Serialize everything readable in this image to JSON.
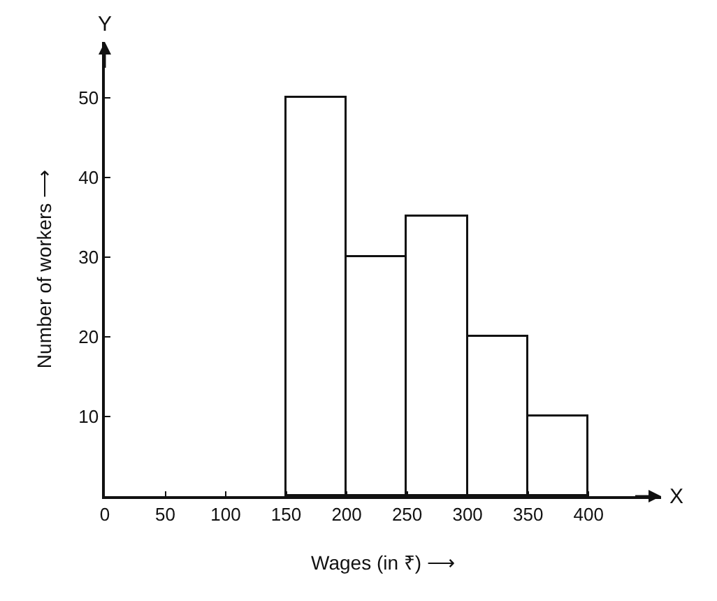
{
  "chart_data": {
    "type": "histogram",
    "xlabel": "Wages (in ₹) ⟶",
    "ylabel": "Number of workers ⟶",
    "bins": [
      150,
      200,
      250,
      300,
      350,
      400
    ],
    "values": [
      50,
      30,
      35,
      20,
      10
    ],
    "color": "#ffffff",
    "xlim": [
      0,
      460
    ],
    "xticks": [
      0,
      50,
      100,
      150,
      200,
      250,
      300,
      350,
      400
    ],
    "ylim": [
      0,
      57
    ],
    "yticks": [
      10,
      20,
      30,
      40,
      50
    ],
    "annotations": [
      "X",
      "Y"
    ],
    "grid": false
  }
}
